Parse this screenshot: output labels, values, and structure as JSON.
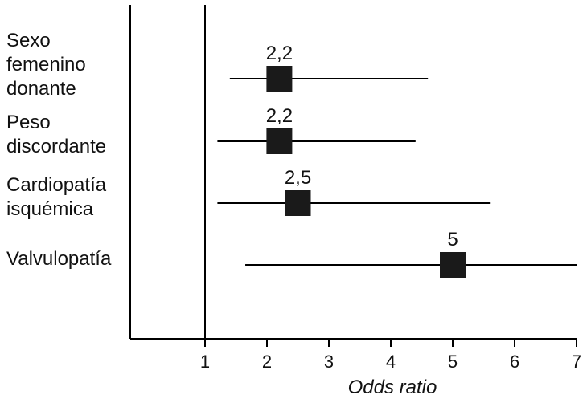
{
  "chart_data": {
    "type": "forest",
    "xlabel": "Odds ratio",
    "xlim": [
      0,
      7
    ],
    "xticks": [
      1,
      2,
      3,
      4,
      5,
      6,
      7
    ],
    "reference_line": 1,
    "rows": [
      {
        "label_lines": [
          "Sexo",
          "femenino",
          "donante"
        ],
        "or": 2.2,
        "or_label": "2,2",
        "ci": [
          1.4,
          4.6
        ]
      },
      {
        "label_lines": [
          "Peso",
          "discordante"
        ],
        "or": 2.2,
        "or_label": "2,2",
        "ci": [
          1.2,
          4.4
        ]
      },
      {
        "label_lines": [
          "Cardiopatía",
          "isquémica"
        ],
        "or": 2.5,
        "or_label": "2,5",
        "ci": [
          1.2,
          5.6
        ]
      },
      {
        "label_lines": [
          "Valvulopatía"
        ],
        "or": 5,
        "or_label": "5",
        "ci": [
          1.65,
          7.0
        ]
      }
    ]
  }
}
